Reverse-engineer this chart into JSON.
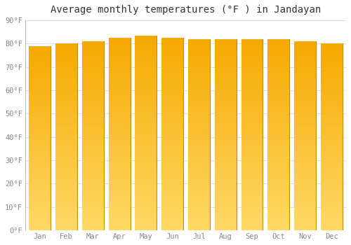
{
  "title": "Average monthly temperatures (°F ) in Jandayan",
  "months": [
    "Jan",
    "Feb",
    "Mar",
    "Apr",
    "May",
    "Jun",
    "Jul",
    "Aug",
    "Sep",
    "Oct",
    "Nov",
    "Dec"
  ],
  "values": [
    79.0,
    80.0,
    81.0,
    82.5,
    83.5,
    82.5,
    82.0,
    82.0,
    82.0,
    82.0,
    81.0,
    80.0
  ],
  "bar_color_top": "#F5A800",
  "bar_color_bottom": "#FFD966",
  "bar_edge_color": "#CC8800",
  "background_color": "#FFFFFF",
  "plot_bg_color": "#FFFFFF",
  "grid_color": "#DDDDDD",
  "text_color": "#888888",
  "title_color": "#333333",
  "ylim": [
    0,
    90
  ],
  "yticks": [
    0,
    10,
    20,
    30,
    40,
    50,
    60,
    70,
    80,
    90
  ],
  "ytick_labels": [
    "0°F",
    "10°F",
    "20°F",
    "30°F",
    "40°F",
    "50°F",
    "60°F",
    "70°F",
    "80°F",
    "90°F"
  ],
  "figsize": [
    5.0,
    3.5
  ],
  "dpi": 100
}
